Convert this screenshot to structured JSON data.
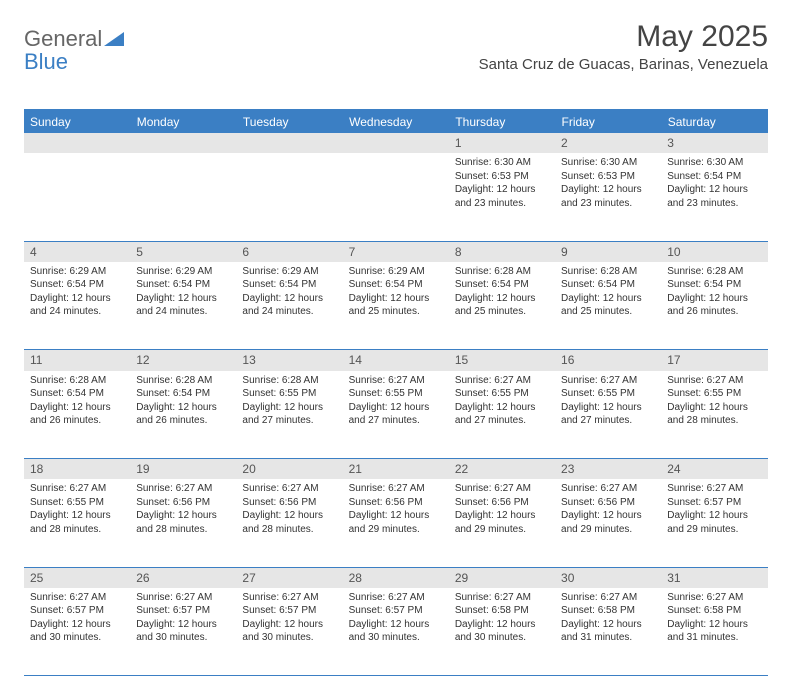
{
  "brand": {
    "part1": "General",
    "part2": "Blue"
  },
  "title": {
    "monthYear": "May 2025",
    "location": "Santa Cruz de Guacas, Barinas, Venezuela"
  },
  "colors": {
    "headerBg": "#3b7fc4",
    "headerText": "#ffffff",
    "dayNumBg": "#e6e6e6",
    "border": "#3b7fc4",
    "text": "#333333"
  },
  "days": [
    "Sunday",
    "Monday",
    "Tuesday",
    "Wednesday",
    "Thursday",
    "Friday",
    "Saturday"
  ],
  "weeks": [
    [
      null,
      null,
      null,
      null,
      {
        "n": "1",
        "sr": "6:30 AM",
        "ss": "6:53 PM",
        "dl": "12 hours and 23 minutes."
      },
      {
        "n": "2",
        "sr": "6:30 AM",
        "ss": "6:53 PM",
        "dl": "12 hours and 23 minutes."
      },
      {
        "n": "3",
        "sr": "6:30 AM",
        "ss": "6:54 PM",
        "dl": "12 hours and 23 minutes."
      }
    ],
    [
      {
        "n": "4",
        "sr": "6:29 AM",
        "ss": "6:54 PM",
        "dl": "12 hours and 24 minutes."
      },
      {
        "n": "5",
        "sr": "6:29 AM",
        "ss": "6:54 PM",
        "dl": "12 hours and 24 minutes."
      },
      {
        "n": "6",
        "sr": "6:29 AM",
        "ss": "6:54 PM",
        "dl": "12 hours and 24 minutes."
      },
      {
        "n": "7",
        "sr": "6:29 AM",
        "ss": "6:54 PM",
        "dl": "12 hours and 25 minutes."
      },
      {
        "n": "8",
        "sr": "6:28 AM",
        "ss": "6:54 PM",
        "dl": "12 hours and 25 minutes."
      },
      {
        "n": "9",
        "sr": "6:28 AM",
        "ss": "6:54 PM",
        "dl": "12 hours and 25 minutes."
      },
      {
        "n": "10",
        "sr": "6:28 AM",
        "ss": "6:54 PM",
        "dl": "12 hours and 26 minutes."
      }
    ],
    [
      {
        "n": "11",
        "sr": "6:28 AM",
        "ss": "6:54 PM",
        "dl": "12 hours and 26 minutes."
      },
      {
        "n": "12",
        "sr": "6:28 AM",
        "ss": "6:54 PM",
        "dl": "12 hours and 26 minutes."
      },
      {
        "n": "13",
        "sr": "6:28 AM",
        "ss": "6:55 PM",
        "dl": "12 hours and 27 minutes."
      },
      {
        "n": "14",
        "sr": "6:27 AM",
        "ss": "6:55 PM",
        "dl": "12 hours and 27 minutes."
      },
      {
        "n": "15",
        "sr": "6:27 AM",
        "ss": "6:55 PM",
        "dl": "12 hours and 27 minutes."
      },
      {
        "n": "16",
        "sr": "6:27 AM",
        "ss": "6:55 PM",
        "dl": "12 hours and 27 minutes."
      },
      {
        "n": "17",
        "sr": "6:27 AM",
        "ss": "6:55 PM",
        "dl": "12 hours and 28 minutes."
      }
    ],
    [
      {
        "n": "18",
        "sr": "6:27 AM",
        "ss": "6:55 PM",
        "dl": "12 hours and 28 minutes."
      },
      {
        "n": "19",
        "sr": "6:27 AM",
        "ss": "6:56 PM",
        "dl": "12 hours and 28 minutes."
      },
      {
        "n": "20",
        "sr": "6:27 AM",
        "ss": "6:56 PM",
        "dl": "12 hours and 28 minutes."
      },
      {
        "n": "21",
        "sr": "6:27 AM",
        "ss": "6:56 PM",
        "dl": "12 hours and 29 minutes."
      },
      {
        "n": "22",
        "sr": "6:27 AM",
        "ss": "6:56 PM",
        "dl": "12 hours and 29 minutes."
      },
      {
        "n": "23",
        "sr": "6:27 AM",
        "ss": "6:56 PM",
        "dl": "12 hours and 29 minutes."
      },
      {
        "n": "24",
        "sr": "6:27 AM",
        "ss": "6:57 PM",
        "dl": "12 hours and 29 minutes."
      }
    ],
    [
      {
        "n": "25",
        "sr": "6:27 AM",
        "ss": "6:57 PM",
        "dl": "12 hours and 30 minutes."
      },
      {
        "n": "26",
        "sr": "6:27 AM",
        "ss": "6:57 PM",
        "dl": "12 hours and 30 minutes."
      },
      {
        "n": "27",
        "sr": "6:27 AM",
        "ss": "6:57 PM",
        "dl": "12 hours and 30 minutes."
      },
      {
        "n": "28",
        "sr": "6:27 AM",
        "ss": "6:57 PM",
        "dl": "12 hours and 30 minutes."
      },
      {
        "n": "29",
        "sr": "6:27 AM",
        "ss": "6:58 PM",
        "dl": "12 hours and 30 minutes."
      },
      {
        "n": "30",
        "sr": "6:27 AM",
        "ss": "6:58 PM",
        "dl": "12 hours and 31 minutes."
      },
      {
        "n": "31",
        "sr": "6:27 AM",
        "ss": "6:58 PM",
        "dl": "12 hours and 31 minutes."
      }
    ]
  ],
  "labels": {
    "sunrise": "Sunrise:",
    "sunset": "Sunset:",
    "daylight": "Daylight:"
  }
}
